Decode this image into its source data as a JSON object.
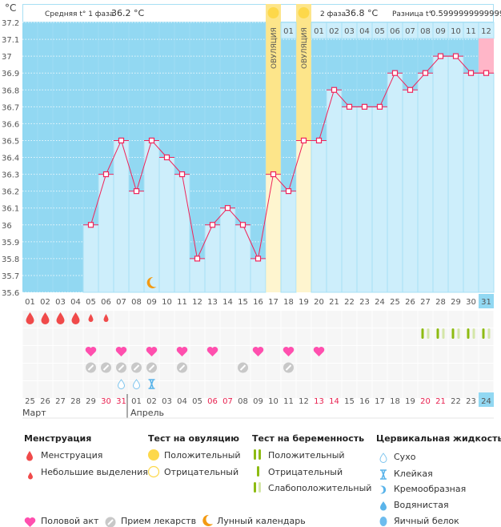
{
  "header": {
    "unit": "°C",
    "phase1_label": "Средняя t° 1 фаза",
    "phase1_value": "36.2 °C",
    "phase2_label": "2 фаза",
    "phase2_value": "36.8 °C",
    "diff_label": "Разница t°",
    "diff_value": "0.5999999999999"
  },
  "colors": {
    "chart_bg": "#92d8f2",
    "bar": "#cdeefb",
    "line": "#f0245a",
    "ovulation": "#fde58a",
    "ovulation_low": "#fef5cf",
    "highlight": "#ffb6c8",
    "today": "#92d8f2",
    "weekend": "#e8204f"
  },
  "chart_data": {
    "type": "line",
    "ylim": [
      35.6,
      37.2
    ],
    "yticks": [
      "37.2",
      "37.1",
      "37",
      "36.9",
      "36.8",
      "36.7",
      "36.6",
      "36.5",
      "36.4",
      "36.3",
      "36.2",
      "36.1",
      "36",
      "35.9",
      "35.8",
      "35.7",
      "35.6"
    ],
    "grid": true,
    "cycle_days": [
      "01",
      "02",
      "03",
      "04",
      "05",
      "06",
      "07",
      "08",
      "09",
      "10",
      "11",
      "12",
      "13",
      "14",
      "15",
      "16",
      "17",
      "18",
      "19",
      "20",
      "21",
      "22",
      "23",
      "24",
      "25",
      "26",
      "27",
      "28",
      "29",
      "30",
      "31"
    ],
    "temperatures": [
      null,
      null,
      null,
      null,
      36.0,
      36.3,
      36.5,
      36.2,
      36.5,
      36.4,
      36.3,
      35.8,
      36.0,
      36.1,
      36.0,
      35.8,
      36.3,
      36.2,
      36.5,
      36.5,
      36.8,
      36.7,
      36.7,
      36.7,
      36.9,
      36.8,
      36.9,
      37.0,
      37.0,
      36.9,
      36.9
    ],
    "ovulation_days": [
      17,
      19
    ],
    "ovulation_label": "ОВУЛЯЦИЯ",
    "post_ovulation_counters": {
      "18": "01",
      "20": "01",
      "21": "02",
      "22": "03",
      "23": "04",
      "24": "05",
      "25": "06",
      "26": "07",
      "27": "08",
      "28": "09",
      "29": "10",
      "30": "11",
      "31": "12"
    },
    "highlight_day": 31,
    "dates": [
      "25",
      "26",
      "27",
      "28",
      "29",
      "30",
      "31",
      "01",
      "02",
      "03",
      "04",
      "05",
      "06",
      "07",
      "08",
      "09",
      "10",
      "11",
      "12",
      "13",
      "14",
      "15",
      "16",
      "17",
      "18",
      "19",
      "20",
      "21",
      "22",
      "23",
      "24"
    ],
    "weekend_dates_idx": [
      5,
      6,
      12,
      13,
      19,
      20,
      26,
      27
    ],
    "months": [
      {
        "label": "Март",
        "start": 1
      },
      {
        "label": "Апрель",
        "start": 8
      }
    ],
    "menstruation": {
      "1": "heavy",
      "2": "heavy",
      "3": "heavy",
      "4": "heavy",
      "5": "spotting",
      "6": "spotting"
    },
    "ovulation_tests": {
      "17": "positive",
      "19": "positive"
    },
    "pregnancy_tests": {
      "27": "weak",
      "28": "weak",
      "29": "weak",
      "30": "weak",
      "31": "weak"
    },
    "intercourse": [
      5,
      7,
      9,
      11,
      13,
      16,
      18,
      20
    ],
    "medication": [
      5,
      6,
      7,
      8,
      9,
      11,
      15,
      18
    ],
    "cervical_fluid": {
      "7": "dry",
      "8": "dry",
      "9": "sticky"
    },
    "moon": [
      9
    ]
  },
  "legend": {
    "menstruation": {
      "title": "Менструация",
      "items": [
        "Менструация",
        "Небольшие выделения"
      ]
    },
    "ovulation": {
      "title": "Тест на овуляцию",
      "items": [
        "Положительный",
        "Отрицательный"
      ]
    },
    "pregnancy": {
      "title": "Тест на беременность",
      "items": [
        "Положительный",
        "Отрицательный",
        "Слабоположительный"
      ]
    },
    "fluid": {
      "title": "Цервикальная жидкость",
      "items": [
        "Сухо",
        "Клейкая",
        "Кремообразная",
        "Водянистая",
        "Яичный белок"
      ]
    },
    "other": [
      "Половой акт",
      "Прием лекарств",
      "Лунный календарь"
    ]
  }
}
